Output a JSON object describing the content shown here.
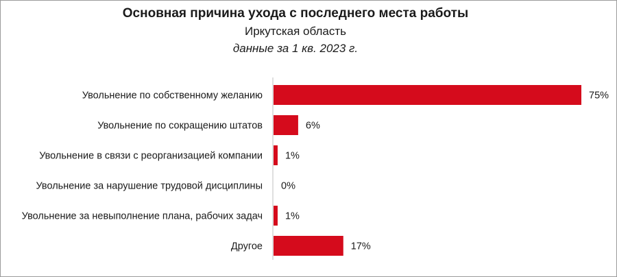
{
  "chart_data": {
    "type": "bar",
    "orientation": "horizontal",
    "title": "Основная причина ухода с последнего места работы",
    "subtitle": "Иркутская область",
    "period": "данные за 1 кв. 2023 г.",
    "categories": [
      "Увольнение по собственному желанию",
      "Увольнение по сокращению штатов",
      "Увольнение в связи с реорганизацией компании",
      "Увольнение за нарушение трудовой дисциплины",
      "Увольнение за невыполнение плана, рабочих задач",
      "Другое"
    ],
    "values": [
      75,
      6,
      1,
      0,
      1,
      17
    ],
    "value_labels": [
      "75%",
      "6%",
      "1%",
      "0%",
      "1%",
      "17%"
    ],
    "unit": "%",
    "xlim": [
      0,
      75
    ],
    "grid": false,
    "legend": "none",
    "bar_color": "#d50b1c"
  }
}
